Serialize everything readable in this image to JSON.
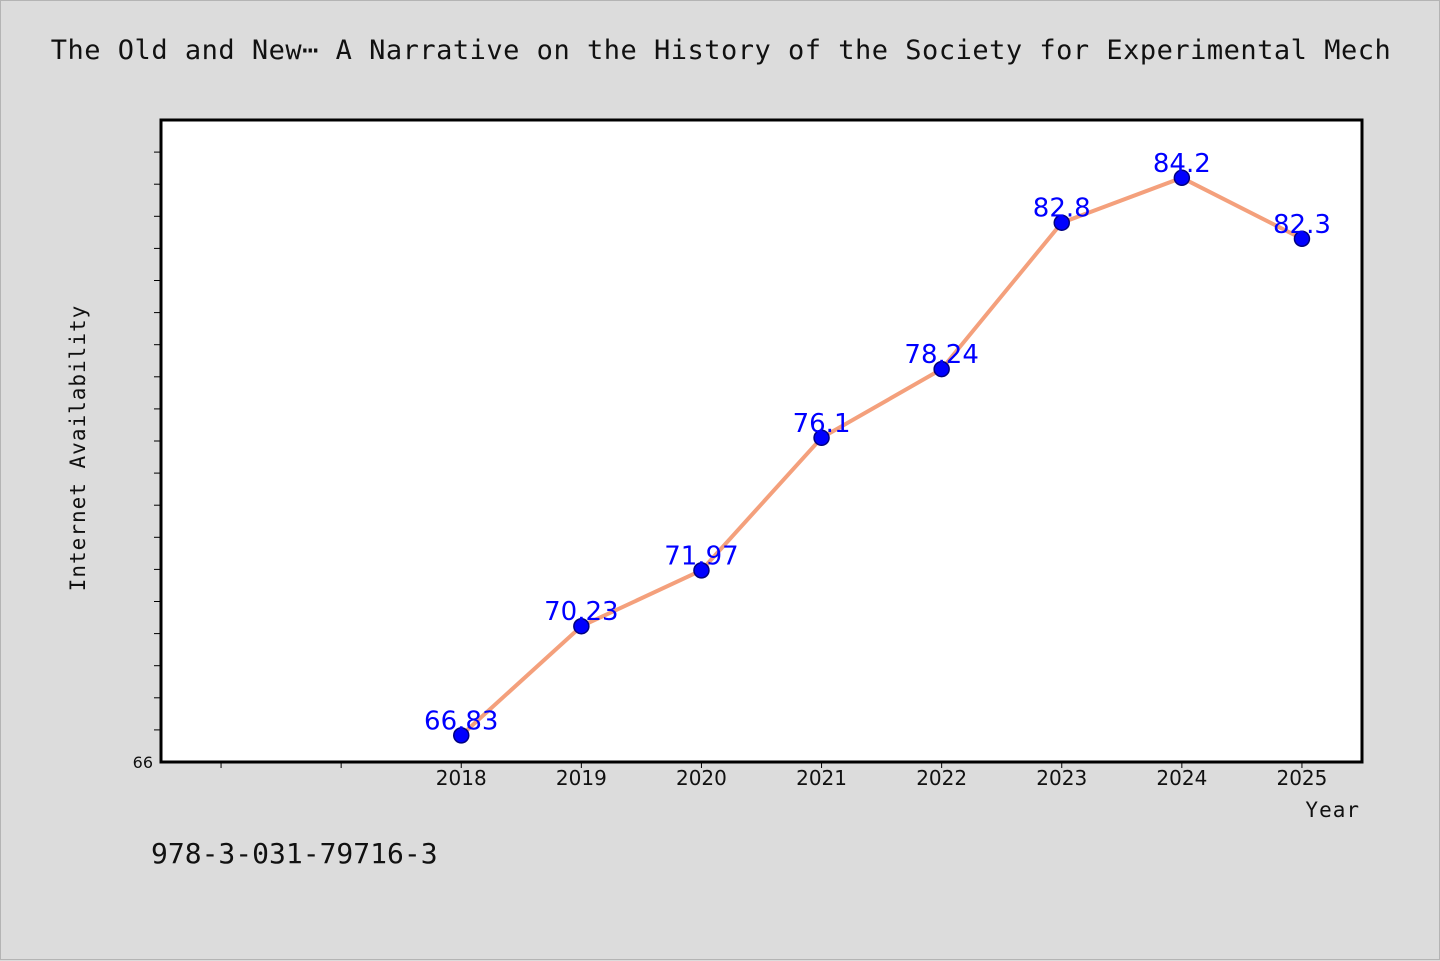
{
  "header": {
    "title": "The Old and New⋯ A Narrative on the History of the Society for Experimental Mech"
  },
  "footer": {
    "isbn": "978-3-031-79716-3"
  },
  "chart_data": {
    "type": "line",
    "title": "The Old and New⋯ A Narrative on the History of the Society for Experimental Mech",
    "xlabel": "Year",
    "ylabel": "Internet Availability",
    "categories": [
      "2018",
      "2019",
      "2020",
      "2021",
      "2022",
      "2023",
      "2024",
      "2025"
    ],
    "x_positions": [
      3,
      4,
      5,
      6,
      7,
      8,
      9,
      10
    ],
    "xlim": [
      0.5,
      10.5
    ],
    "ylim": [
      66,
      86
    ],
    "y_tick_labels": [
      "66"
    ],
    "y_minor_tick_step": 1,
    "series": [
      {
        "values": [
          66.83,
          70.23,
          71.97,
          76.1,
          78.24,
          82.8,
          84.2,
          82.3
        ],
        "data_labels": [
          "66.83",
          "70.23",
          "71.97",
          "76.1",
          "78.24",
          "82.8",
          "84.2",
          "82.3"
        ]
      }
    ],
    "grid": false,
    "legend": "none",
    "colors": {
      "line": "#f4a07c",
      "marker": "#0000ff",
      "marker_edge": "#000080",
      "label": "#0000ff",
      "plot_bg": "#ffffff",
      "page_bg": "#dcdcdc"
    }
  }
}
